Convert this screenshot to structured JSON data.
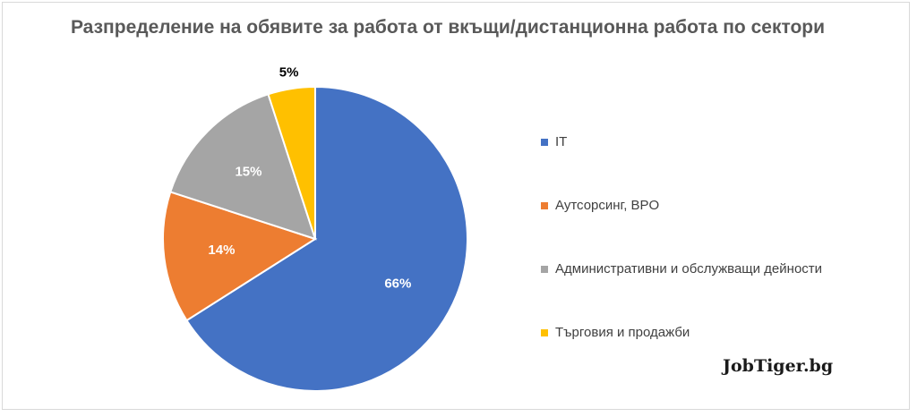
{
  "chart_data": {
    "type": "pie",
    "title": "Разпределение на обявите за работа от вкъщи/дистанционна работа по сектори",
    "categories": [
      "IT",
      "Аутсорсинг, BPO",
      "Административни и обслужващи дейности",
      "Търговия и продажби"
    ],
    "values": [
      66,
      14,
      15,
      5
    ],
    "value_labels": [
      "66%",
      "14%",
      "15%",
      "5%"
    ],
    "colors": [
      "#4472c4",
      "#ed7d31",
      "#a5a5a5",
      "#ffc000"
    ],
    "label_colors": [
      "#ffffff",
      "#ffffff",
      "#ffffff",
      "#000000"
    ],
    "legend_position": "right"
  },
  "watermark": "JobTiger.bg"
}
